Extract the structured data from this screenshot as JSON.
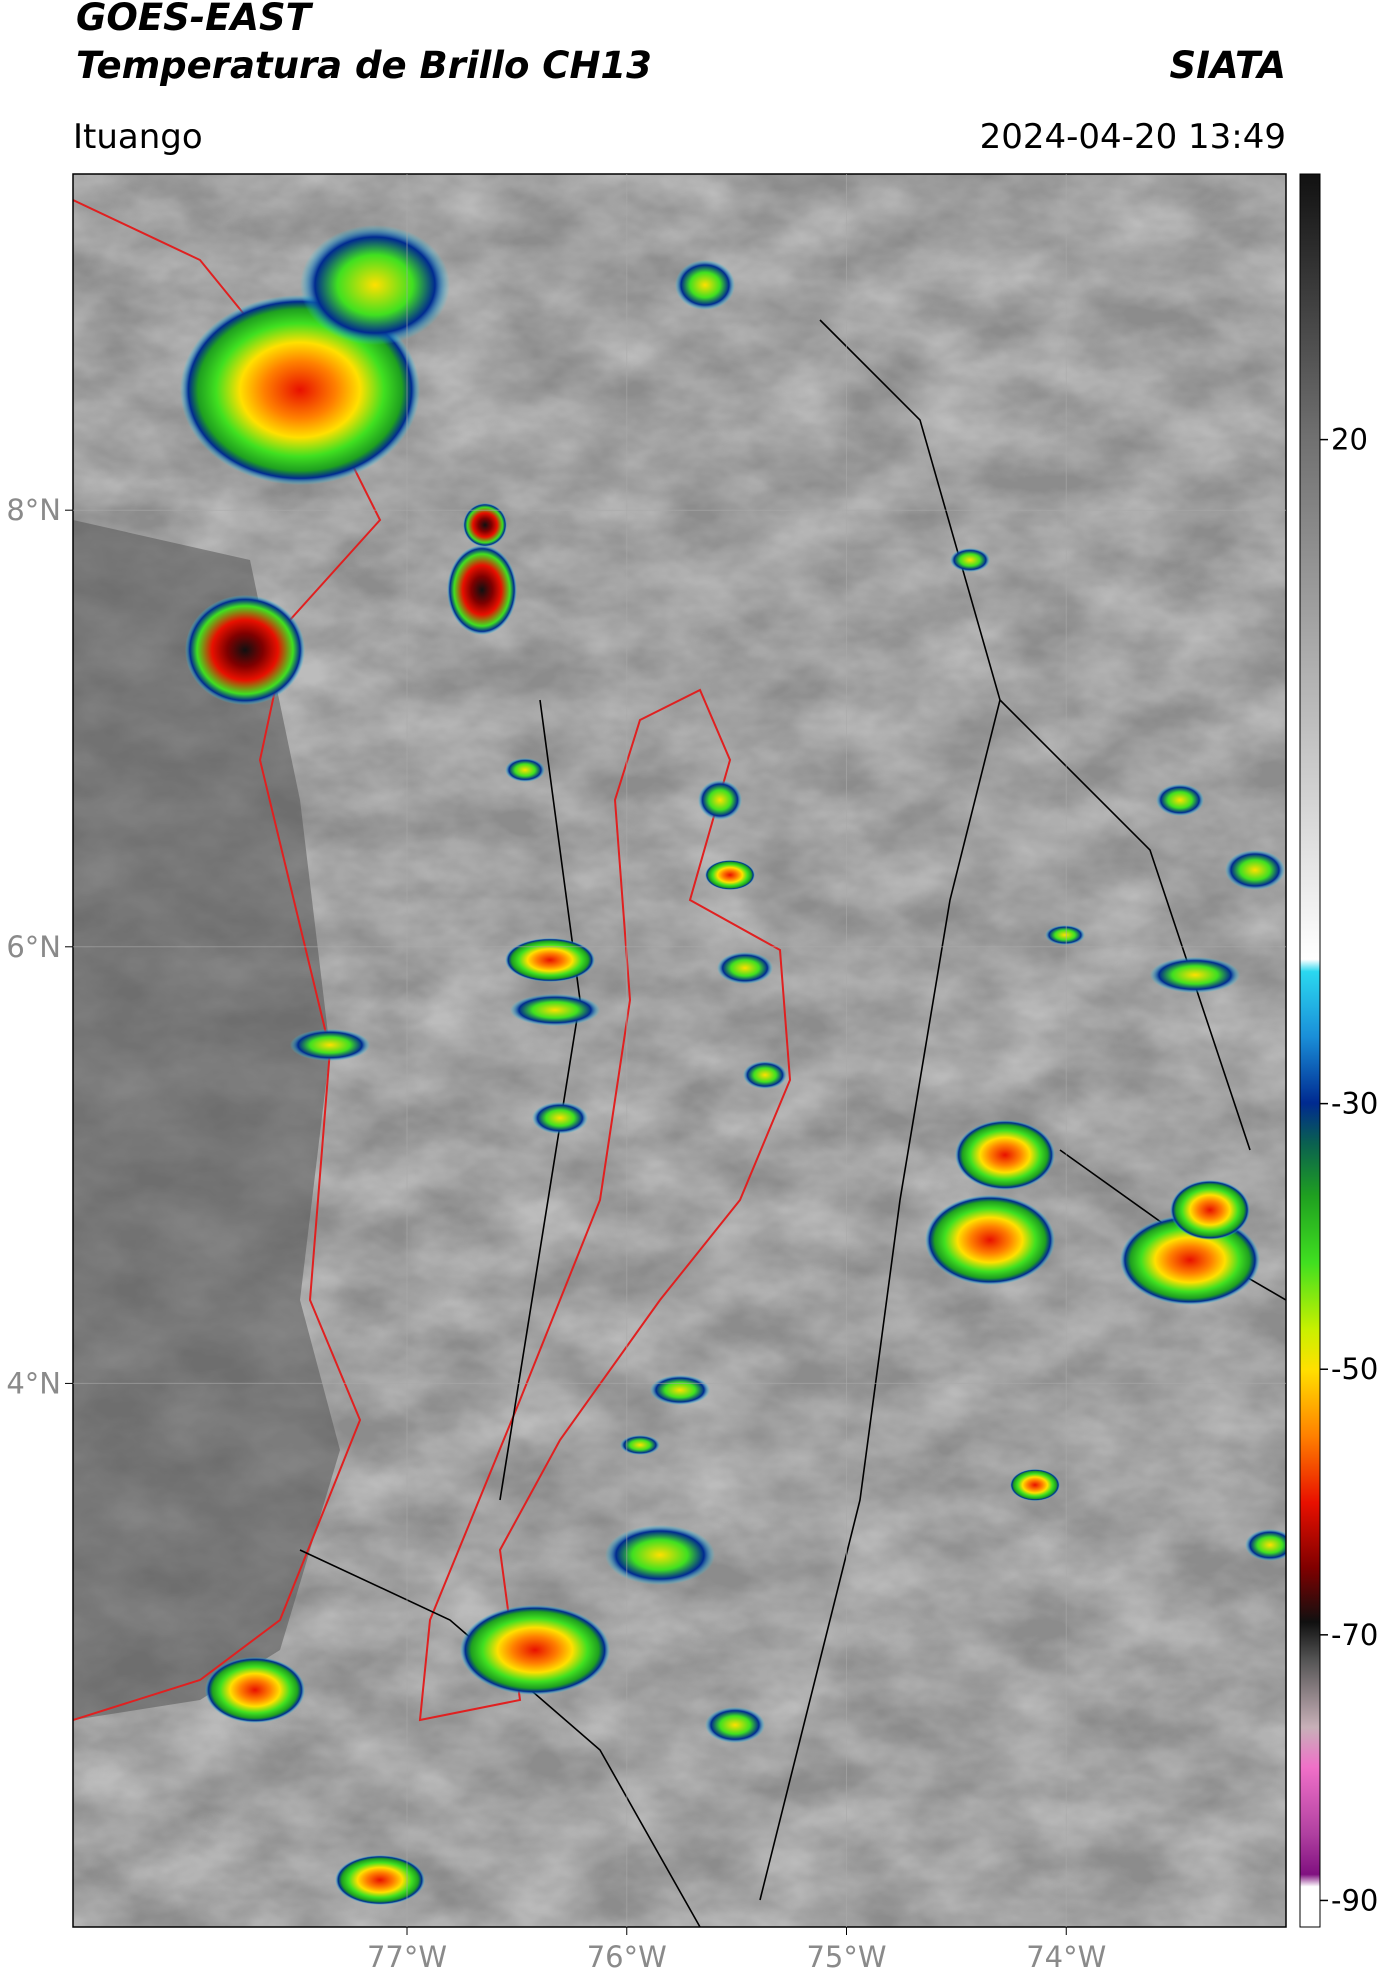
{
  "header": {
    "title": "GOES-EAST",
    "subtitle": "Temperatura de Brillo CH13",
    "brand": "SIATA",
    "location": "Ituango",
    "datetime": "2024-04-20 13:49"
  },
  "map": {
    "xlim": [
      -78.52,
      -73.0
    ],
    "ylim": [
      1.51,
      9.54
    ],
    "xticks": [
      {
        "value": -77,
        "label": "77°W"
      },
      {
        "value": -76,
        "label": "76°W"
      },
      {
        "value": -75,
        "label": "75°W"
      },
      {
        "value": -74,
        "label": "74°W"
      }
    ],
    "yticks": [
      {
        "value": 8,
        "label": "8°N"
      },
      {
        "value": 6,
        "label": "6°N"
      },
      {
        "value": 4,
        "label": "4°N"
      }
    ],
    "grid": true
  },
  "colorbar": {
    "lim": [
      -92,
      40
    ],
    "ticks": [
      20,
      -30,
      -50,
      -70,
      -90
    ]
  }
}
